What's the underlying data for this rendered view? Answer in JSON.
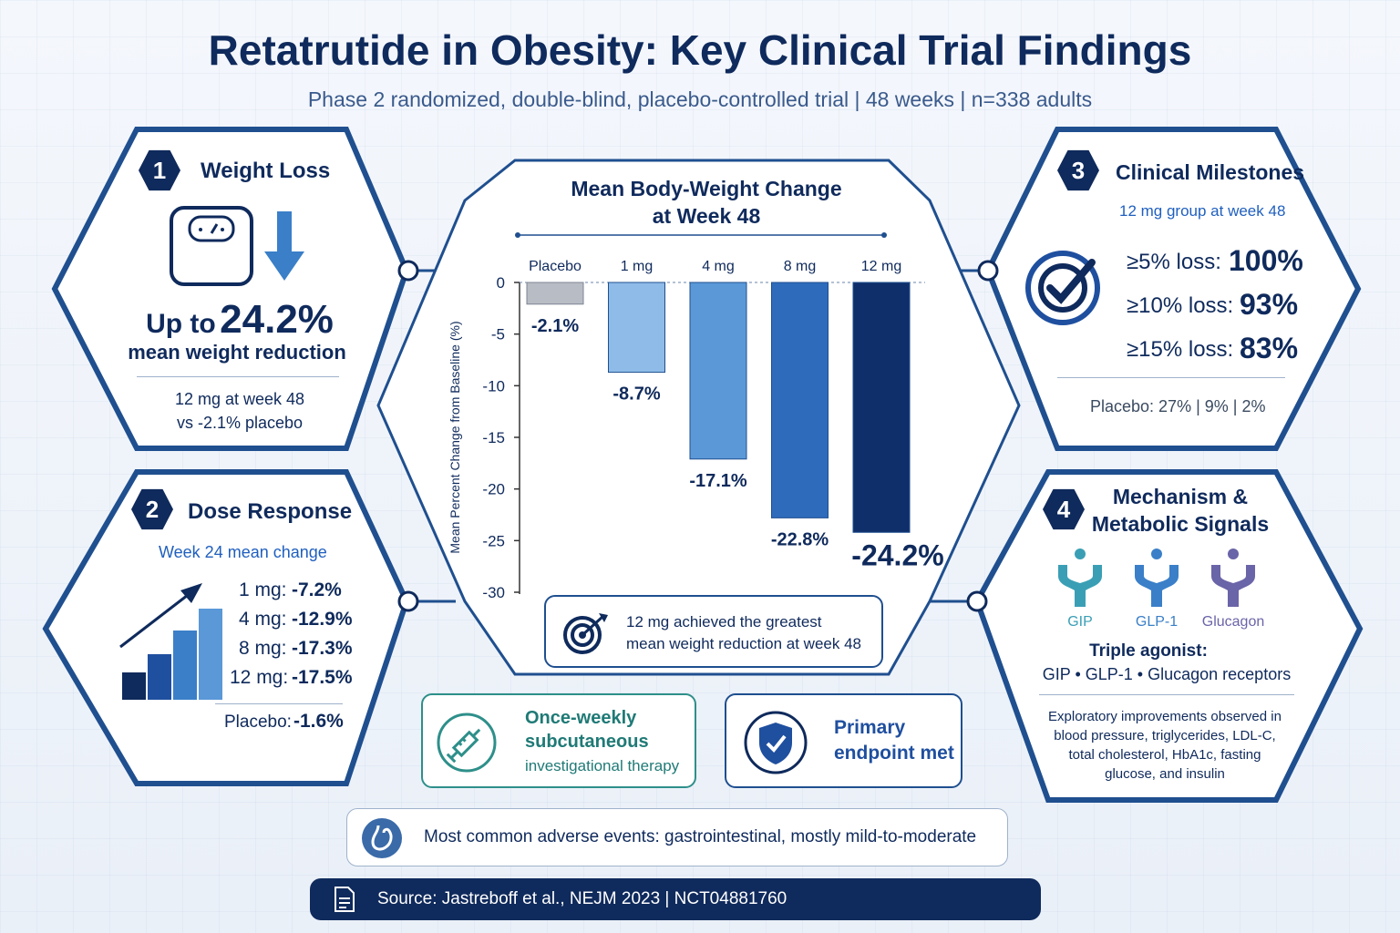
{
  "header": {
    "title": "Retatrutide in Obesity: Key Clinical Trial Findings",
    "subtitle": "Phase 2 randomized, double-blind, placebo-controlled trial  |  48 weeks  |  n=338 adults"
  },
  "panel1": {
    "number": "1",
    "title": "Weight Loss",
    "up_to": "Up to",
    "headline_value": "24.2%",
    "headline_label": "mean weight reduction",
    "note_line1": "12 mg at week 48",
    "note_line2": "vs -2.1% placebo"
  },
  "panel2": {
    "number": "2",
    "title": "Dose Response",
    "subtitle": "Week 24 mean change",
    "rows": [
      {
        "dose": "1 mg:",
        "value": "-7.2%"
      },
      {
        "dose": "4 mg:",
        "value": "-12.9%"
      },
      {
        "dose": "8 mg:",
        "value": "-17.3%"
      },
      {
        "dose": "12 mg:",
        "value": "-17.5%"
      }
    ],
    "placebo_label": "Placebo:",
    "placebo_value": "-1.6%"
  },
  "panel3": {
    "number": "3",
    "title": "Clinical Milestones",
    "subtitle": "12 mg group at week 48",
    "rows": [
      {
        "label": "≥5% loss:",
        "value": "100%"
      },
      {
        "label": "≥10% loss:",
        "value": "93%"
      },
      {
        "label": "≥15% loss:",
        "value": "83%"
      }
    ],
    "placebo_note": "Placebo: 27% | 9% | 2%"
  },
  "panel4": {
    "number": "4",
    "title_line1": "Mechanism &",
    "title_line2": "Metabolic Signals",
    "receptors": [
      {
        "name": "GIP",
        "color": "#3a9fb5"
      },
      {
        "name": "GLP-1",
        "color": "#3a7fc8"
      },
      {
        "name": "Glucagon",
        "color": "#6a64a8"
      }
    ],
    "agonist_title": "Triple agonist:",
    "agonist_detail": "GIP • GLP-1 • Glucagon receptors",
    "exploratory_lines": [
      "Exploratory improvements observed in",
      "blood pressure, triglycerides, LDL-C,",
      "total cholesterol, HbA1c, fasting",
      "glucose, and insulin"
    ]
  },
  "chart_data": {
    "type": "bar",
    "title": "Mean Body-Weight Change\nat Week 48",
    "title_line1": "Mean Body-Weight Change",
    "title_line2": "at Week 48",
    "ylabel": "Mean Percent Change from Baseline (%)",
    "categories": [
      "Placebo",
      "1 mg",
      "4 mg",
      "8 mg",
      "12 mg"
    ],
    "values": [
      -2.1,
      -8.7,
      -17.1,
      -22.8,
      -24.2
    ],
    "value_labels": [
      "-2.1%",
      "-8.7%",
      "-17.1%",
      "-22.8%",
      "-24.2%"
    ],
    "bar_colors": [
      "#b8bcc4",
      "#8fbbe8",
      "#5a98d8",
      "#2e6bbb",
      "#0f2f6a"
    ],
    "ylim": [
      -30,
      0
    ],
    "yticks": [
      0,
      -5,
      -10,
      -15,
      -20,
      -25,
      -30
    ],
    "ytick_labels": [
      "0",
      "-5",
      "-10",
      "-15",
      "-20",
      "-25",
      "-30"
    ],
    "grid": false,
    "note_line1": "12 mg achieved the greatest",
    "note_line2": "mean weight reduction at week 48"
  },
  "cards": {
    "injection_line1": "Once-weekly",
    "injection_line2": "subcutaneous",
    "injection_line3": "investigational therapy",
    "endpoint_line1": "Primary",
    "endpoint_line2": "endpoint met",
    "adverse": "Most common adverse events: gastrointestinal, mostly mild-to-moderate"
  },
  "source": "Source: Jastreboff et al., NEJM 2023  |  NCT04881760",
  "colors": {
    "navy": "#0f2a5c",
    "accent_blue": "#1f5fbf",
    "teal": "#2e8f8a"
  }
}
